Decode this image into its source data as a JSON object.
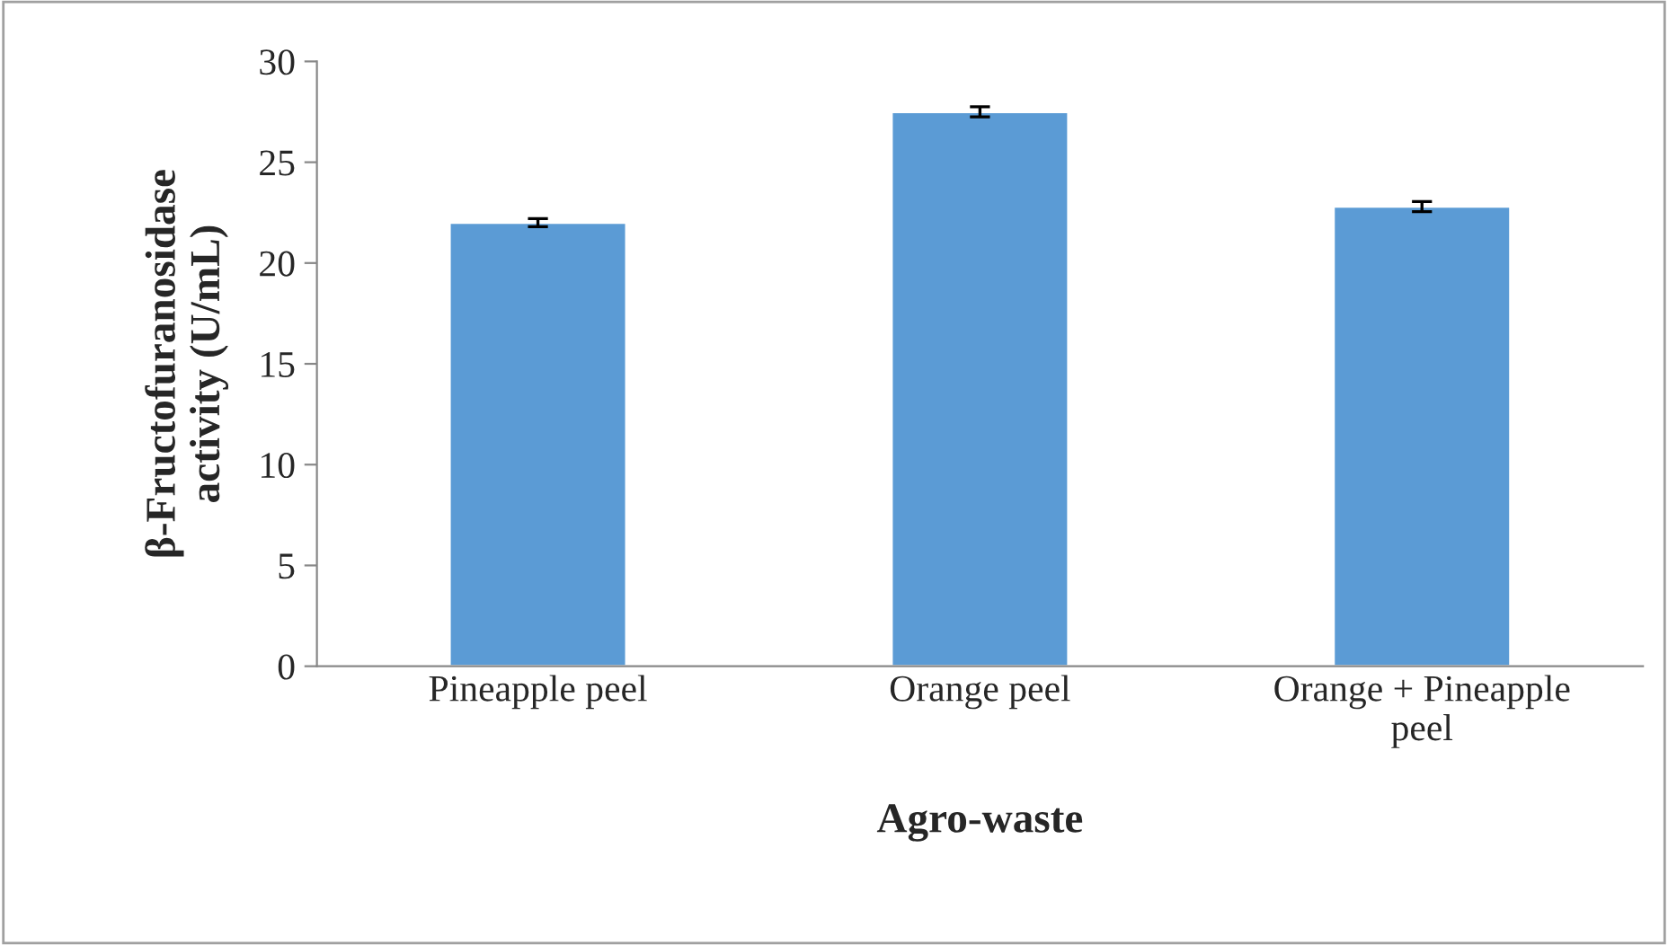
{
  "chart_data": {
    "type": "bar",
    "xlabel": "Agro-waste",
    "ylabel": "β-Fructofuranosidase\nactivity (U/mL)",
    "categories": [
      "Pineapple peel",
      "Orange peel",
      "Orange + Pineapple\npeel"
    ],
    "values": [
      22.0,
      27.5,
      22.8
    ],
    "errors": [
      0.2,
      0.25,
      0.25
    ],
    "color": "#5b9bd5",
    "ylim": [
      0,
      30
    ],
    "yticks": [
      0,
      5,
      10,
      15,
      20,
      25,
      30
    ],
    "grid": false,
    "legend": false
  }
}
